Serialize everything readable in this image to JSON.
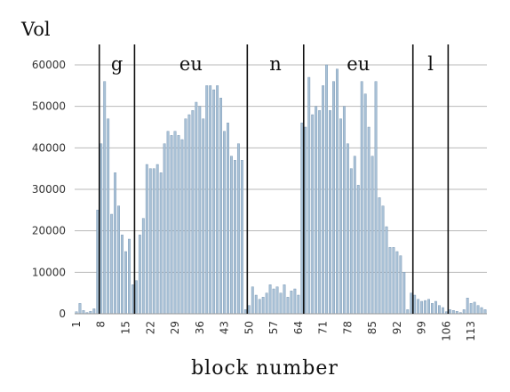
{
  "chart_data": {
    "type": "bar",
    "title": "",
    "ylabel": "Vol",
    "xlabel": "block number",
    "ylim": [
      0,
      60000
    ],
    "yticks": [
      0,
      10000,
      20000,
      30000,
      40000,
      50000,
      60000
    ],
    "xticks": [
      1,
      8,
      15,
      22,
      29,
      36,
      43,
      50,
      57,
      64,
      71,
      78,
      85,
      92,
      99,
      106,
      113
    ],
    "xlim": [
      0.5,
      117.5
    ],
    "grid": true,
    "bar_color": "#a9c1d6",
    "bar_edge_color": "#6f8fae",
    "x": [
      1,
      2,
      3,
      4,
      5,
      6,
      7,
      8,
      9,
      10,
      11,
      12,
      13,
      14,
      15,
      16,
      17,
      18,
      19,
      20,
      21,
      22,
      23,
      24,
      25,
      26,
      27,
      28,
      29,
      30,
      31,
      32,
      33,
      34,
      35,
      36,
      37,
      38,
      39,
      40,
      41,
      42,
      43,
      44,
      45,
      46,
      47,
      48,
      49,
      50,
      51,
      52,
      53,
      54,
      55,
      56,
      57,
      58,
      59,
      60,
      61,
      62,
      63,
      64,
      65,
      66,
      67,
      68,
      69,
      70,
      71,
      72,
      73,
      74,
      75,
      76,
      77,
      78,
      79,
      80,
      81,
      82,
      83,
      84,
      85,
      86,
      87,
      88,
      89,
      90,
      91,
      92,
      93,
      94,
      95,
      96,
      97,
      98,
      99,
      100,
      101,
      102,
      103,
      104,
      105,
      106,
      107,
      108,
      109,
      110,
      111,
      112,
      113,
      114,
      115,
      116,
      117
    ],
    "values": [
      500,
      2500,
      800,
      300,
      600,
      1200,
      25000,
      41000,
      56000,
      47000,
      24000,
      34000,
      26000,
      19000,
      15000,
      18000,
      7000,
      8000,
      19000,
      23000,
      36000,
      35000,
      35000,
      36000,
      34000,
      41000,
      44000,
      43000,
      44000,
      43000,
      42000,
      47000,
      48000,
      49000,
      51000,
      50000,
      47000,
      55000,
      55000,
      54000,
      55000,
      52000,
      44000,
      46000,
      38000,
      37000,
      41000,
      37000,
      1000,
      2000,
      6500,
      4500,
      3500,
      4000,
      5000,
      7000,
      6000,
      6500,
      5000,
      7000,
      4000,
      5500,
      6000,
      4500,
      46000,
      45000,
      57000,
      48000,
      50000,
      49000,
      55000,
      60000,
      49000,
      56000,
      59000,
      47000,
      50000,
      41000,
      35000,
      38000,
      31000,
      56000,
      53000,
      45000,
      38000,
      56000,
      28000,
      26000,
      21000,
      16000,
      16000,
      15000,
      14000,
      10000,
      1000,
      5000,
      4500,
      3500,
      3000,
      3200,
      3500,
      2500,
      3000,
      2000,
      1500,
      500,
      1000,
      800,
      600,
      300,
      1000,
      3800,
      2500,
      2800,
      2000,
      1500,
      1000
    ],
    "segments": [
      {
        "label": "g",
        "from": 7,
        "to": 17
      },
      {
        "label": "eu",
        "from": 17,
        "to": 49
      },
      {
        "label": "n",
        "from": 49,
        "to": 65
      },
      {
        "label": "eu",
        "from": 65,
        "to": 96
      },
      {
        "label": "l",
        "from": 96,
        "to": 106
      }
    ]
  }
}
